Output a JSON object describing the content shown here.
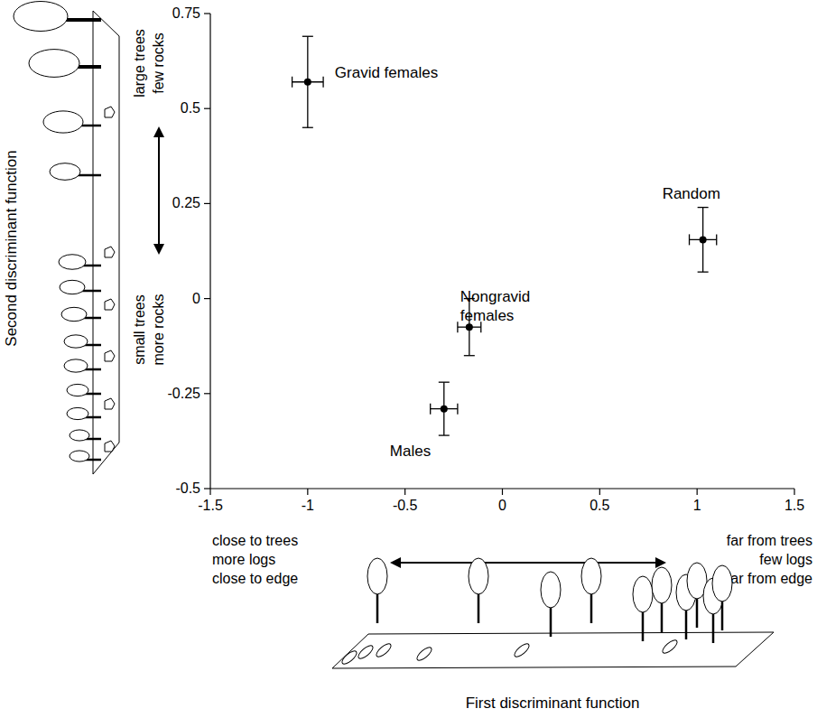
{
  "chart_data": {
    "type": "scatter",
    "color": "#000000",
    "marker": "circle",
    "x_label": "First discriminant function",
    "y_label": "Second discriminant function",
    "x_low_label": [
      "close to trees",
      "more logs",
      "close to edge"
    ],
    "x_high_label": [
      "far from trees",
      "few logs",
      "far from edge"
    ],
    "y_high_label": [
      "large trees",
      "few rocks"
    ],
    "y_low_label": [
      "small trees",
      "more rocks"
    ],
    "xlim": [
      -1.5,
      1.5
    ],
    "xticks": [
      -1.5,
      -1,
      -0.5,
      0,
      0.5,
      1,
      1.5
    ],
    "ylim": [
      -0.5,
      0.75
    ],
    "yticks": [
      -0.5,
      -0.25,
      0,
      0.25,
      0.5,
      0.75
    ],
    "series": [
      {
        "name": "Gravid females",
        "x": [
          -1.0
        ],
        "y": [
          0.57
        ],
        "xerr": [
          0.08
        ],
        "yerr": [
          0.12
        ]
      },
      {
        "name": "Random",
        "x": [
          1.03
        ],
        "y": [
          0.155
        ],
        "xerr": [
          0.07
        ],
        "yerr": [
          0.085
        ]
      },
      {
        "name": "Nongravid females",
        "x": [
          -0.17
        ],
        "y": [
          -0.075
        ],
        "xerr": [
          0.06
        ],
        "yerr": [
          0.075
        ]
      },
      {
        "name": "Males",
        "x": [
          -0.3
        ],
        "y": [
          -0.29
        ],
        "xerr": [
          0.07
        ],
        "yerr": [
          0.07
        ]
      }
    ]
  }
}
